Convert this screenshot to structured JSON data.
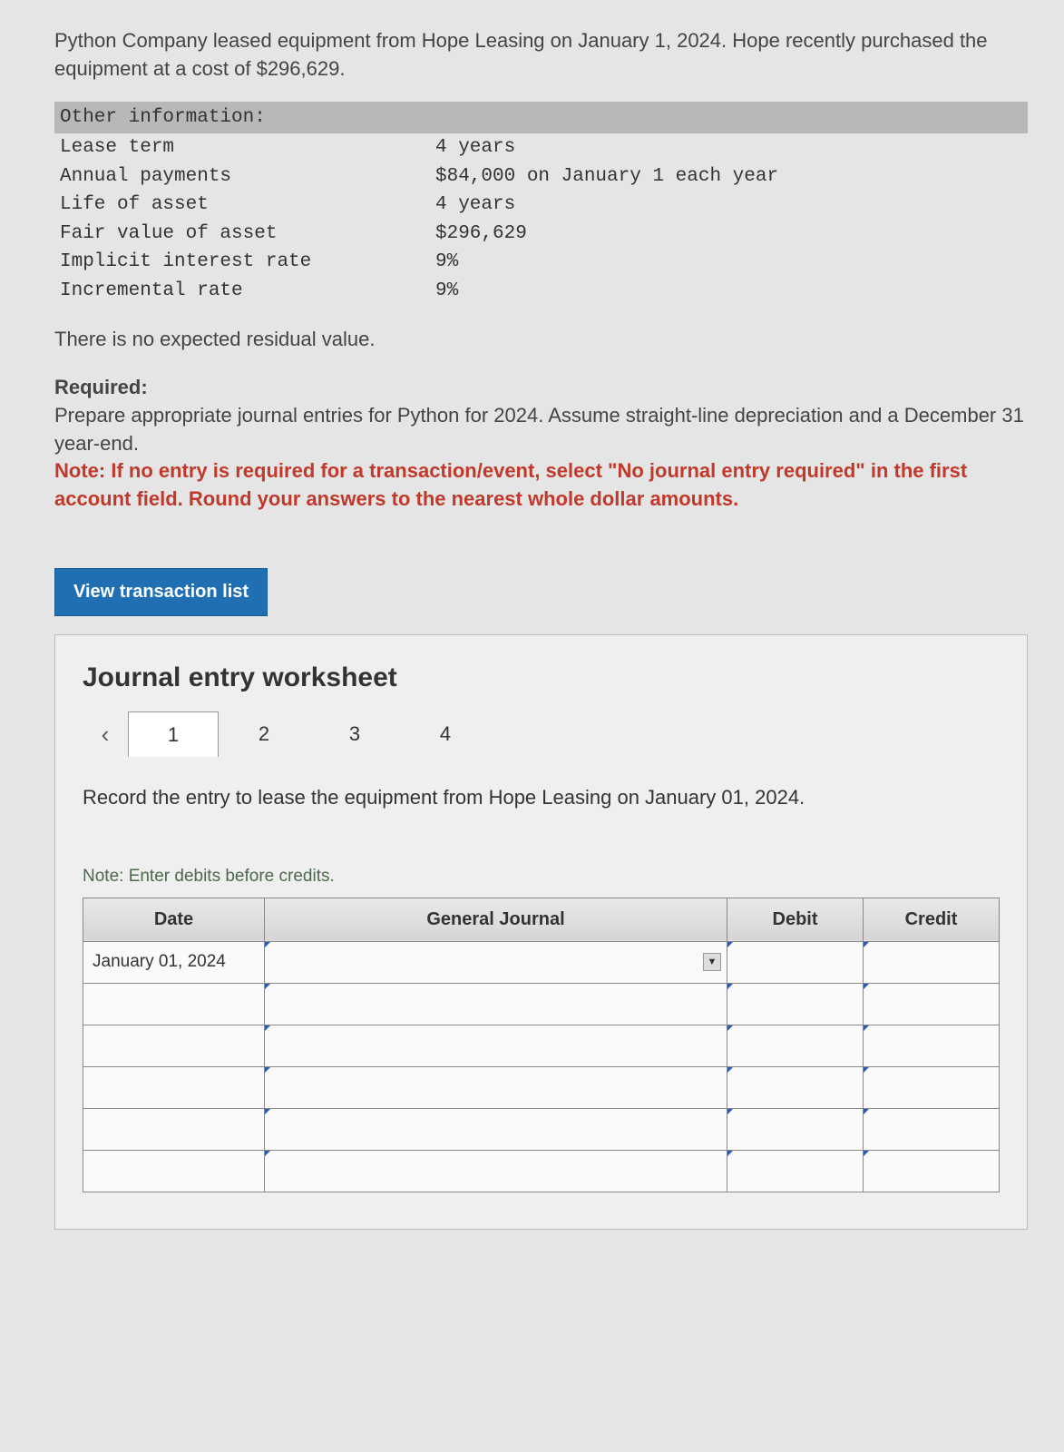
{
  "intro": "Python Company leased equipment from Hope Leasing on January 1, 2024. Hope recently purchased the equipment at a cost of $296,629.",
  "info": {
    "header": "Other information:",
    "rows": [
      {
        "label": "Lease term",
        "value": "4 years"
      },
      {
        "label": "Annual payments",
        "value": "$84,000 on January 1 each year"
      },
      {
        "label": "Life of asset",
        "value": "4 years"
      },
      {
        "label": "Fair value of asset",
        "value": "$296,629"
      },
      {
        "label": "Implicit interest rate",
        "value": "9%"
      },
      {
        "label": "Incremental rate",
        "value": "9%"
      }
    ]
  },
  "no_residual": "There is no expected residual value.",
  "required": {
    "label": "Required:",
    "text": "Prepare appropriate journal entries for Python for 2024. Assume straight-line depreciation and a December 31 year-end.",
    "note": "Note: If no entry is required for a transaction/event, select \"No journal entry required\" in the first account field. Round your answers to the nearest whole dollar amounts."
  },
  "view_trans_label": "View transaction list",
  "worksheet": {
    "title": "Journal entry worksheet",
    "tabs": [
      "1",
      "2",
      "3",
      "4"
    ],
    "active_tab": 0,
    "instruction": "Record the entry to lease the equipment from Hope Leasing on January 01, 2024.",
    "note_debits": "Note: Enter debits before credits.",
    "columns": {
      "date": "Date",
      "gj": "General Journal",
      "debit": "Debit",
      "credit": "Credit"
    },
    "rows": [
      {
        "date": "January 01, 2024",
        "gj": "",
        "debit": "",
        "credit": "",
        "show_dropdown": true
      },
      {
        "date": "",
        "gj": "",
        "debit": "",
        "credit": "",
        "show_dropdown": false
      },
      {
        "date": "",
        "gj": "",
        "debit": "",
        "credit": "",
        "show_dropdown": false
      },
      {
        "date": "",
        "gj": "",
        "debit": "",
        "credit": "",
        "show_dropdown": false
      },
      {
        "date": "",
        "gj": "",
        "debit": "",
        "credit": "",
        "show_dropdown": false
      },
      {
        "date": "",
        "gj": "",
        "debit": "",
        "credit": "",
        "show_dropdown": false
      }
    ]
  }
}
